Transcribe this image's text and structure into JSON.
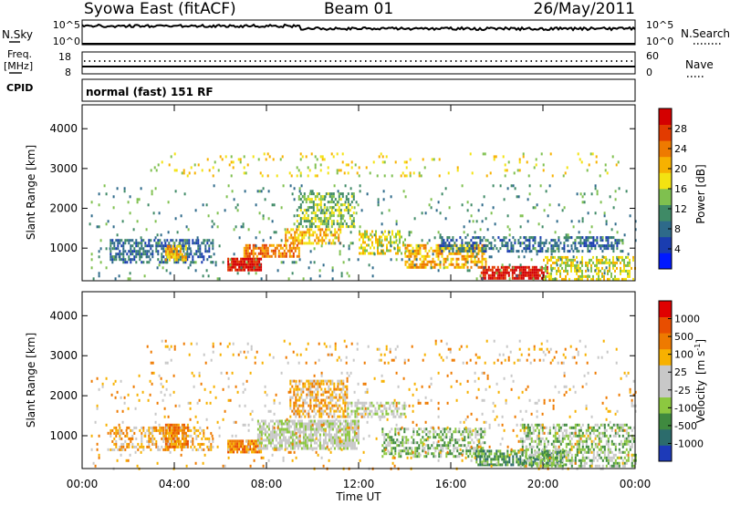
{
  "header": {
    "station": "Syowa East (fitACF)",
    "beam": "Beam 01",
    "date": "26/May/2011"
  },
  "status": {
    "nsky_label": "N.Sky",
    "nsky_ticks": [
      "10^5",
      "10^0"
    ],
    "nsearch_label": "N.Search",
    "freq_label_1": "Freq.",
    "freq_label_2": "[MHz]",
    "freq_ticks": [
      "18",
      "8"
    ],
    "nave_ticks": [
      "60",
      "0"
    ],
    "nave_label": "Nave",
    "cpid_label": "CPID",
    "cpid_value": "normal (fast) 151 RF"
  },
  "x_axis": {
    "label": "Time UT",
    "ticks": [
      "00:00",
      "04:00",
      "08:00",
      "12:00",
      "16:00",
      "20:00",
      "00:00"
    ]
  },
  "chart_data": [
    {
      "type": "heatmap",
      "panel": "power",
      "ylabel": "Slant Range [km]",
      "yticks": [
        "1000",
        "2000",
        "3000",
        "4000"
      ],
      "ylim": [
        180,
        4600
      ],
      "xlim": [
        0,
        24
      ],
      "colorbar": {
        "label": "Power [dB]",
        "ticks": [
          "4",
          "8",
          "12",
          "16",
          "20",
          "24",
          "28"
        ],
        "colors": [
          "#0019ff",
          "#1a3db0",
          "#2e6a8a",
          "#3f8a66",
          "#7fc04f",
          "#f3e312",
          "#f7b100",
          "#ee7a00",
          "#e23b00",
          "#d40000"
        ]
      },
      "echo_regions": [
        {
          "t": [
            1.2,
            5.7
          ],
          "r": [
            640,
            1230
          ],
          "level": 2,
          "density": 0.55
        },
        {
          "t": [
            3.6,
            4.5
          ],
          "r": [
            700,
            1080
          ],
          "level": 6,
          "density": 0.7
        },
        {
          "t": [
            6.3,
            7.8
          ],
          "r": [
            420,
            760
          ],
          "level": 9,
          "density": 0.9
        },
        {
          "t": [
            7.0,
            9.4
          ],
          "r": [
            760,
            1100
          ],
          "level": 7,
          "density": 0.7
        },
        {
          "t": [
            8.8,
            11.2
          ],
          "r": [
            1100,
            1500
          ],
          "level": 6,
          "density": 0.6
        },
        {
          "t": [
            9.3,
            11.8
          ],
          "r": [
            1550,
            2400
          ],
          "level": 4,
          "density": 0.55
        },
        {
          "t": [
            12.0,
            14.0
          ],
          "r": [
            900,
            1450
          ],
          "level": 5,
          "density": 0.55
        },
        {
          "t": [
            14.0,
            17.5
          ],
          "r": [
            500,
            1100
          ],
          "level": 6,
          "density": 0.6
        },
        {
          "t": [
            17.3,
            20.2
          ],
          "r": [
            250,
            550
          ],
          "level": 9,
          "density": 0.8
        },
        {
          "t": [
            15.5,
            23.5
          ],
          "r": [
            900,
            1300
          ],
          "level": 2,
          "density": 0.5
        },
        {
          "t": [
            20.0,
            24.0
          ],
          "r": [
            250,
            800
          ],
          "level": 5,
          "density": 0.5
        },
        {
          "t": [
            0.3,
            24.0
          ],
          "r": [
            200,
            2600
          ],
          "level": 3,
          "density": 0.05
        },
        {
          "t": [
            2.8,
            23.3
          ],
          "r": [
            2800,
            3400
          ],
          "level": 5,
          "density": 0.08
        }
      ]
    },
    {
      "type": "heatmap",
      "panel": "velocity",
      "ylabel": "Slant Range [km]",
      "yticks": [
        "1000",
        "2000",
        "3000",
        "4000"
      ],
      "ylim": [
        180,
        4600
      ],
      "xlim": [
        0,
        24
      ],
      "colorbar": {
        "label": "Velocity",
        "unit": "[m s",
        "unit_sup": "-1",
        "unit_end": "]",
        "ticks": [
          "1000",
          "500",
          "100",
          "25",
          "-25",
          "-100",
          "-500",
          "-1000"
        ],
        "colors": [
          "#1d3ab8",
          "#2c6c6c",
          "#3f8a3f",
          "#8cc840",
          "#c8c8c8",
          "#c8c8c8",
          "#f7b100",
          "#ee7a00",
          "#e84e00",
          "#e00000"
        ]
      },
      "echo_regions": [
        {
          "t": [
            1.2,
            5.7
          ],
          "r": [
            640,
            1230
          ],
          "level": 6,
          "density": 0.45
        },
        {
          "t": [
            3.6,
            4.6
          ],
          "r": [
            700,
            1300
          ],
          "level": 7,
          "density": 0.75
        },
        {
          "t": [
            6.3,
            7.8
          ],
          "r": [
            560,
            900
          ],
          "level": 7,
          "density": 0.9
        },
        {
          "t": [
            7.6,
            12.0
          ],
          "r": [
            700,
            1400
          ],
          "level": 4,
          "density": 0.75
        },
        {
          "t": [
            9.0,
            11.5
          ],
          "r": [
            1500,
            2400
          ],
          "level": 6,
          "density": 0.6
        },
        {
          "t": [
            11.5,
            14.0
          ],
          "r": [
            1450,
            1850
          ],
          "level": 4,
          "density": 0.55
        },
        {
          "t": [
            13.0,
            17.5
          ],
          "r": [
            500,
            1200
          ],
          "level": 3,
          "density": 0.55
        },
        {
          "t": [
            17.0,
            21.0
          ],
          "r": [
            250,
            650
          ],
          "level": 2,
          "density": 0.7
        },
        {
          "t": [
            19.0,
            24.0
          ],
          "r": [
            250,
            1300
          ],
          "level": 3,
          "density": 0.5
        },
        {
          "t": [
            0.3,
            24.0
          ],
          "r": [
            200,
            2600
          ],
          "level": 6,
          "density": 0.05
        },
        {
          "t": [
            2.8,
            23.3
          ],
          "r": [
            2800,
            3400
          ],
          "level": 6,
          "density": 0.08
        }
      ]
    }
  ]
}
